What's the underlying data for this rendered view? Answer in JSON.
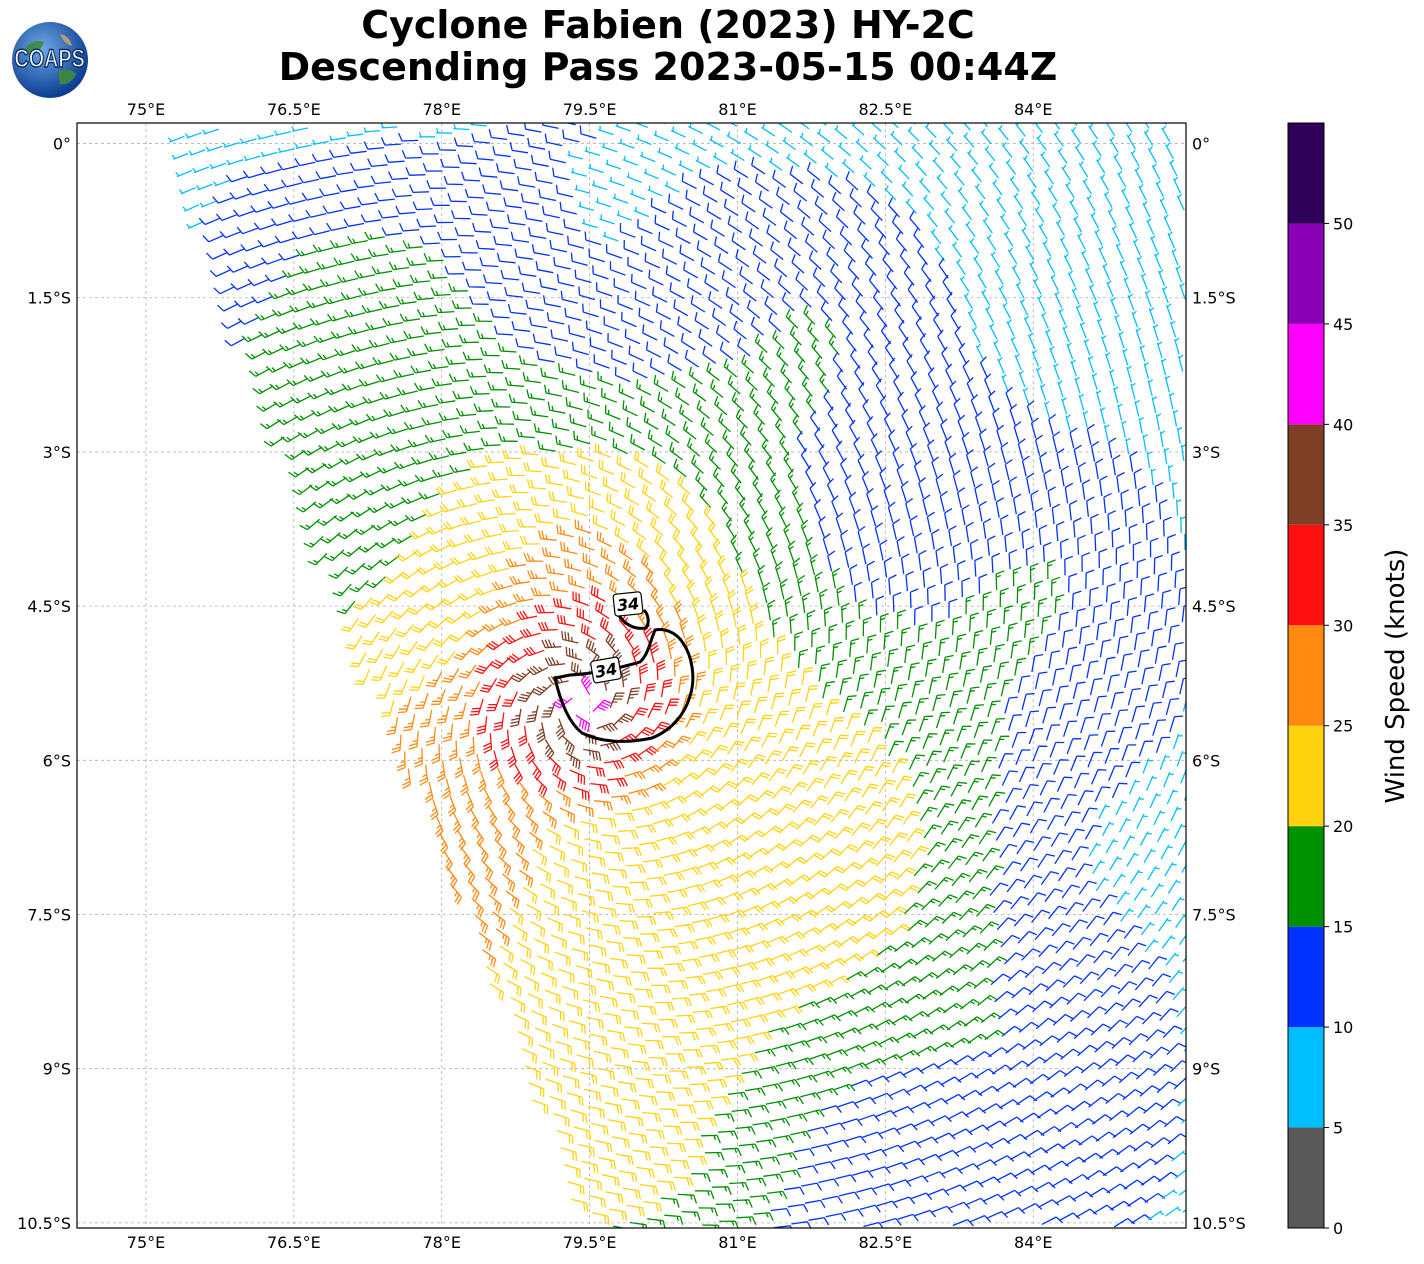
{
  "title": {
    "line1": "Cyclone Fabien (2023) HY-2C",
    "line2": "Descending Pass 2023-05-15 00:44Z"
  },
  "logo": {
    "text": "COAPS",
    "icon": "globe-icon"
  },
  "chart_data": {
    "type": "wind-barb-map",
    "lon_range": [
      74.3,
      85.55
    ],
    "lat_range": [
      -10.55,
      0.2
    ],
    "lon_ticks": [
      "75°E",
      "76.5°E",
      "78°E",
      "79.5°E",
      "81°E",
      "82.5°E",
      "84°E"
    ],
    "lat_ticks": [
      "0°",
      "1.5°S",
      "3°S",
      "4.5°S",
      "6°S",
      "7.5°S",
      "9°S",
      "10.5°S"
    ],
    "grid": true,
    "center": {
      "lon": 79.4,
      "lat": -5.45
    },
    "contour": {
      "label": "34",
      "color": "#000000"
    },
    "contour_labels": [
      "34",
      "34"
    ],
    "colorbar": {
      "label": "Wind Speed (knots)",
      "ticks": [
        "0",
        "5",
        "10",
        "15",
        "20",
        "25",
        "30",
        "35",
        "40",
        "45",
        "50"
      ],
      "bins": [
        {
          "min": 0,
          "max": 5,
          "color": "#595959"
        },
        {
          "min": 5,
          "max": 10,
          "color": "#00bfff"
        },
        {
          "min": 10,
          "max": 15,
          "color": "#0033ff"
        },
        {
          "min": 15,
          "max": 20,
          "color": "#009100"
        },
        {
          "min": 20,
          "max": 25,
          "color": "#ffd30f"
        },
        {
          "min": 25,
          "max": 30,
          "color": "#ff8a0f"
        },
        {
          "min": 30,
          "max": 35,
          "color": "#ff1010"
        },
        {
          "min": 35,
          "max": 40,
          "color": "#7f3f26"
        },
        {
          "min": 40,
          "max": 45,
          "color": "#ff00ff"
        },
        {
          "min": 45,
          "max": 50,
          "color": "#8a00b5"
        },
        {
          "min": 50,
          "max": 55,
          "color": "#2e0058"
        }
      ]
    }
  }
}
